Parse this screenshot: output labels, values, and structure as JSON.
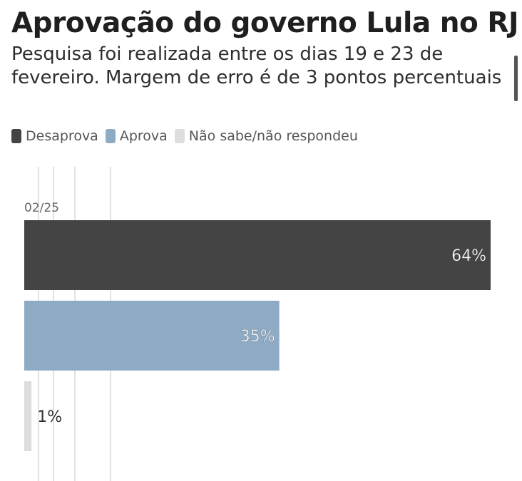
{
  "title": "Aprovação do governo Lula no RJ",
  "subtitle": "Pesquisa foi realizada entre os dias 19 e 23 de fevereiro. Margem de erro é de 3 pontos percentuais",
  "legend": [
    {
      "label": "Desaprova",
      "color": "#444444"
    },
    {
      "label": "Aprova",
      "color": "#8eabc6"
    },
    {
      "label": "Não sabe/não respondeu",
      "color": "#dddddd"
    }
  ],
  "chart_data": {
    "type": "bar",
    "orientation": "horizontal",
    "group_label": "02/25",
    "series": [
      {
        "name": "Desaprova",
        "value": 64,
        "label": "64%",
        "color": "#444444"
      },
      {
        "name": "Aprova",
        "value": 35,
        "label": "35%",
        "color": "#8eabc6"
      },
      {
        "name": "Não sabe/não respondeu",
        "value": 1,
        "label": "1%",
        "color": "#dddddd"
      }
    ],
    "xlim": [
      0,
      64
    ],
    "grid": true,
    "legend_position": "top"
  }
}
